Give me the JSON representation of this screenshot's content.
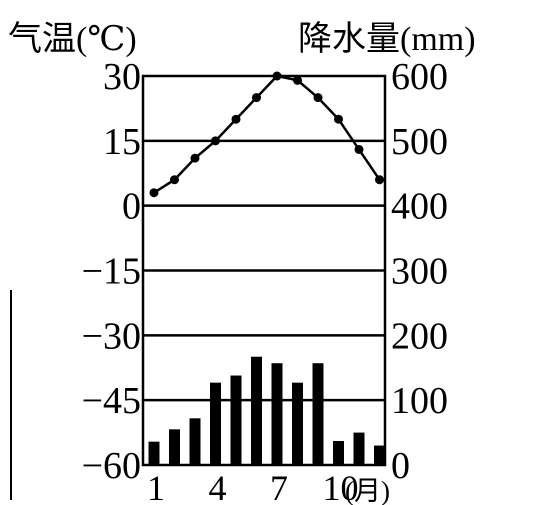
{
  "chart_data": {
    "type": "climate",
    "left_axis_title": "气温(℃)",
    "right_axis_title": "降水量(mm)",
    "left_ticks": [
      "30",
      "15",
      "0",
      "−15",
      "−30",
      "−45",
      "−60"
    ],
    "right_ticks": [
      "600",
      "500",
      "400",
      "300",
      "200",
      "100",
      "0"
    ],
    "x_ticks": [
      {
        "month": 1,
        "label": "1"
      },
      {
        "month": 4,
        "label": "4"
      },
      {
        "month": 7,
        "label": "7"
      },
      {
        "month": 10,
        "label": "10"
      }
    ],
    "x_unit": "(月)",
    "ylim_temp": [
      -60,
      30
    ],
    "ylim_precip": [
      0,
      600
    ],
    "months": [
      1,
      2,
      3,
      4,
      5,
      6,
      7,
      8,
      9,
      10,
      11,
      12
    ],
    "temperature": [
      3,
      6,
      11,
      15,
      20,
      25,
      30,
      29,
      25,
      20,
      13,
      6
    ],
    "precipitation": [
      36,
      55,
      72,
      127,
      138,
      167,
      157,
      127,
      157,
      37,
      50,
      30
    ],
    "grid": "horizontal"
  }
}
